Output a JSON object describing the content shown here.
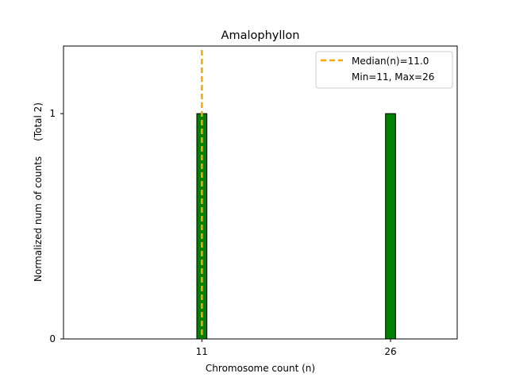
{
  "chart_data": {
    "type": "bar",
    "title": "Amalophyllon",
    "xlabel": "Chromosome count (n)",
    "ylabel": "Normalized num of counts     (Total 2)",
    "bars": [
      {
        "x": 11,
        "value": 1
      },
      {
        "x": 26,
        "value": 1
      }
    ],
    "xticks": [
      11,
      26
    ],
    "yticks": [
      0,
      1
    ],
    "xlim": [
      0,
      31.3
    ],
    "ylim": [
      0,
      1.3
    ],
    "bar_width": 0.8,
    "median_line": {
      "x": 11,
      "label": "Median(n)=11.0"
    },
    "range_text": "Min=11, Max=26",
    "grid": false,
    "legend_position": "top-right",
    "colors": {
      "bar": "#008000",
      "bar_edge": "#000000",
      "median": "#ffa500"
    }
  }
}
